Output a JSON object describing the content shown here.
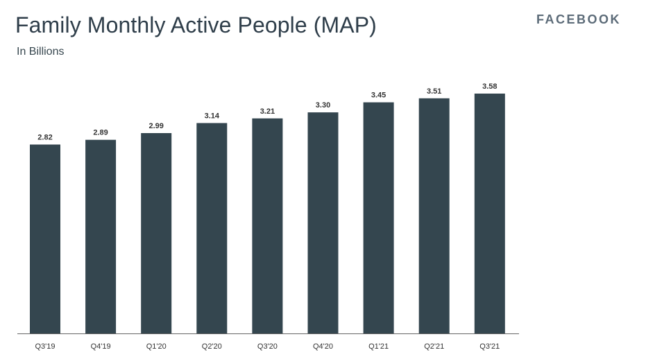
{
  "header": {
    "title": "Family Monthly Active People (MAP)",
    "subtitle": "In Billions",
    "brand": "FACEBOOK"
  },
  "colors": {
    "bar": "#34464f",
    "axis": "#666666",
    "title": "#2f3e4a",
    "brand": "#5c6b78"
  },
  "chart_data": {
    "type": "bar",
    "title": "Family Monthly Active People (MAP)",
    "subtitle": "In Billions",
    "categories": [
      "Q3'19",
      "Q4'19",
      "Q1'20",
      "Q2'20",
      "Q3'20",
      "Q4'20",
      "Q1'21",
      "Q2'21",
      "Q3'21"
    ],
    "values": [
      2.82,
      2.89,
      2.99,
      3.14,
      3.21,
      3.3,
      3.45,
      3.51,
      3.58
    ],
    "value_labels": [
      "2.82",
      "2.89",
      "2.99",
      "3.14",
      "3.21",
      "3.30",
      "3.45",
      "3.51",
      "3.58"
    ],
    "xlabel": "",
    "ylabel": "",
    "ylim": [
      0,
      3.58
    ],
    "grid": false,
    "legend": "none"
  }
}
